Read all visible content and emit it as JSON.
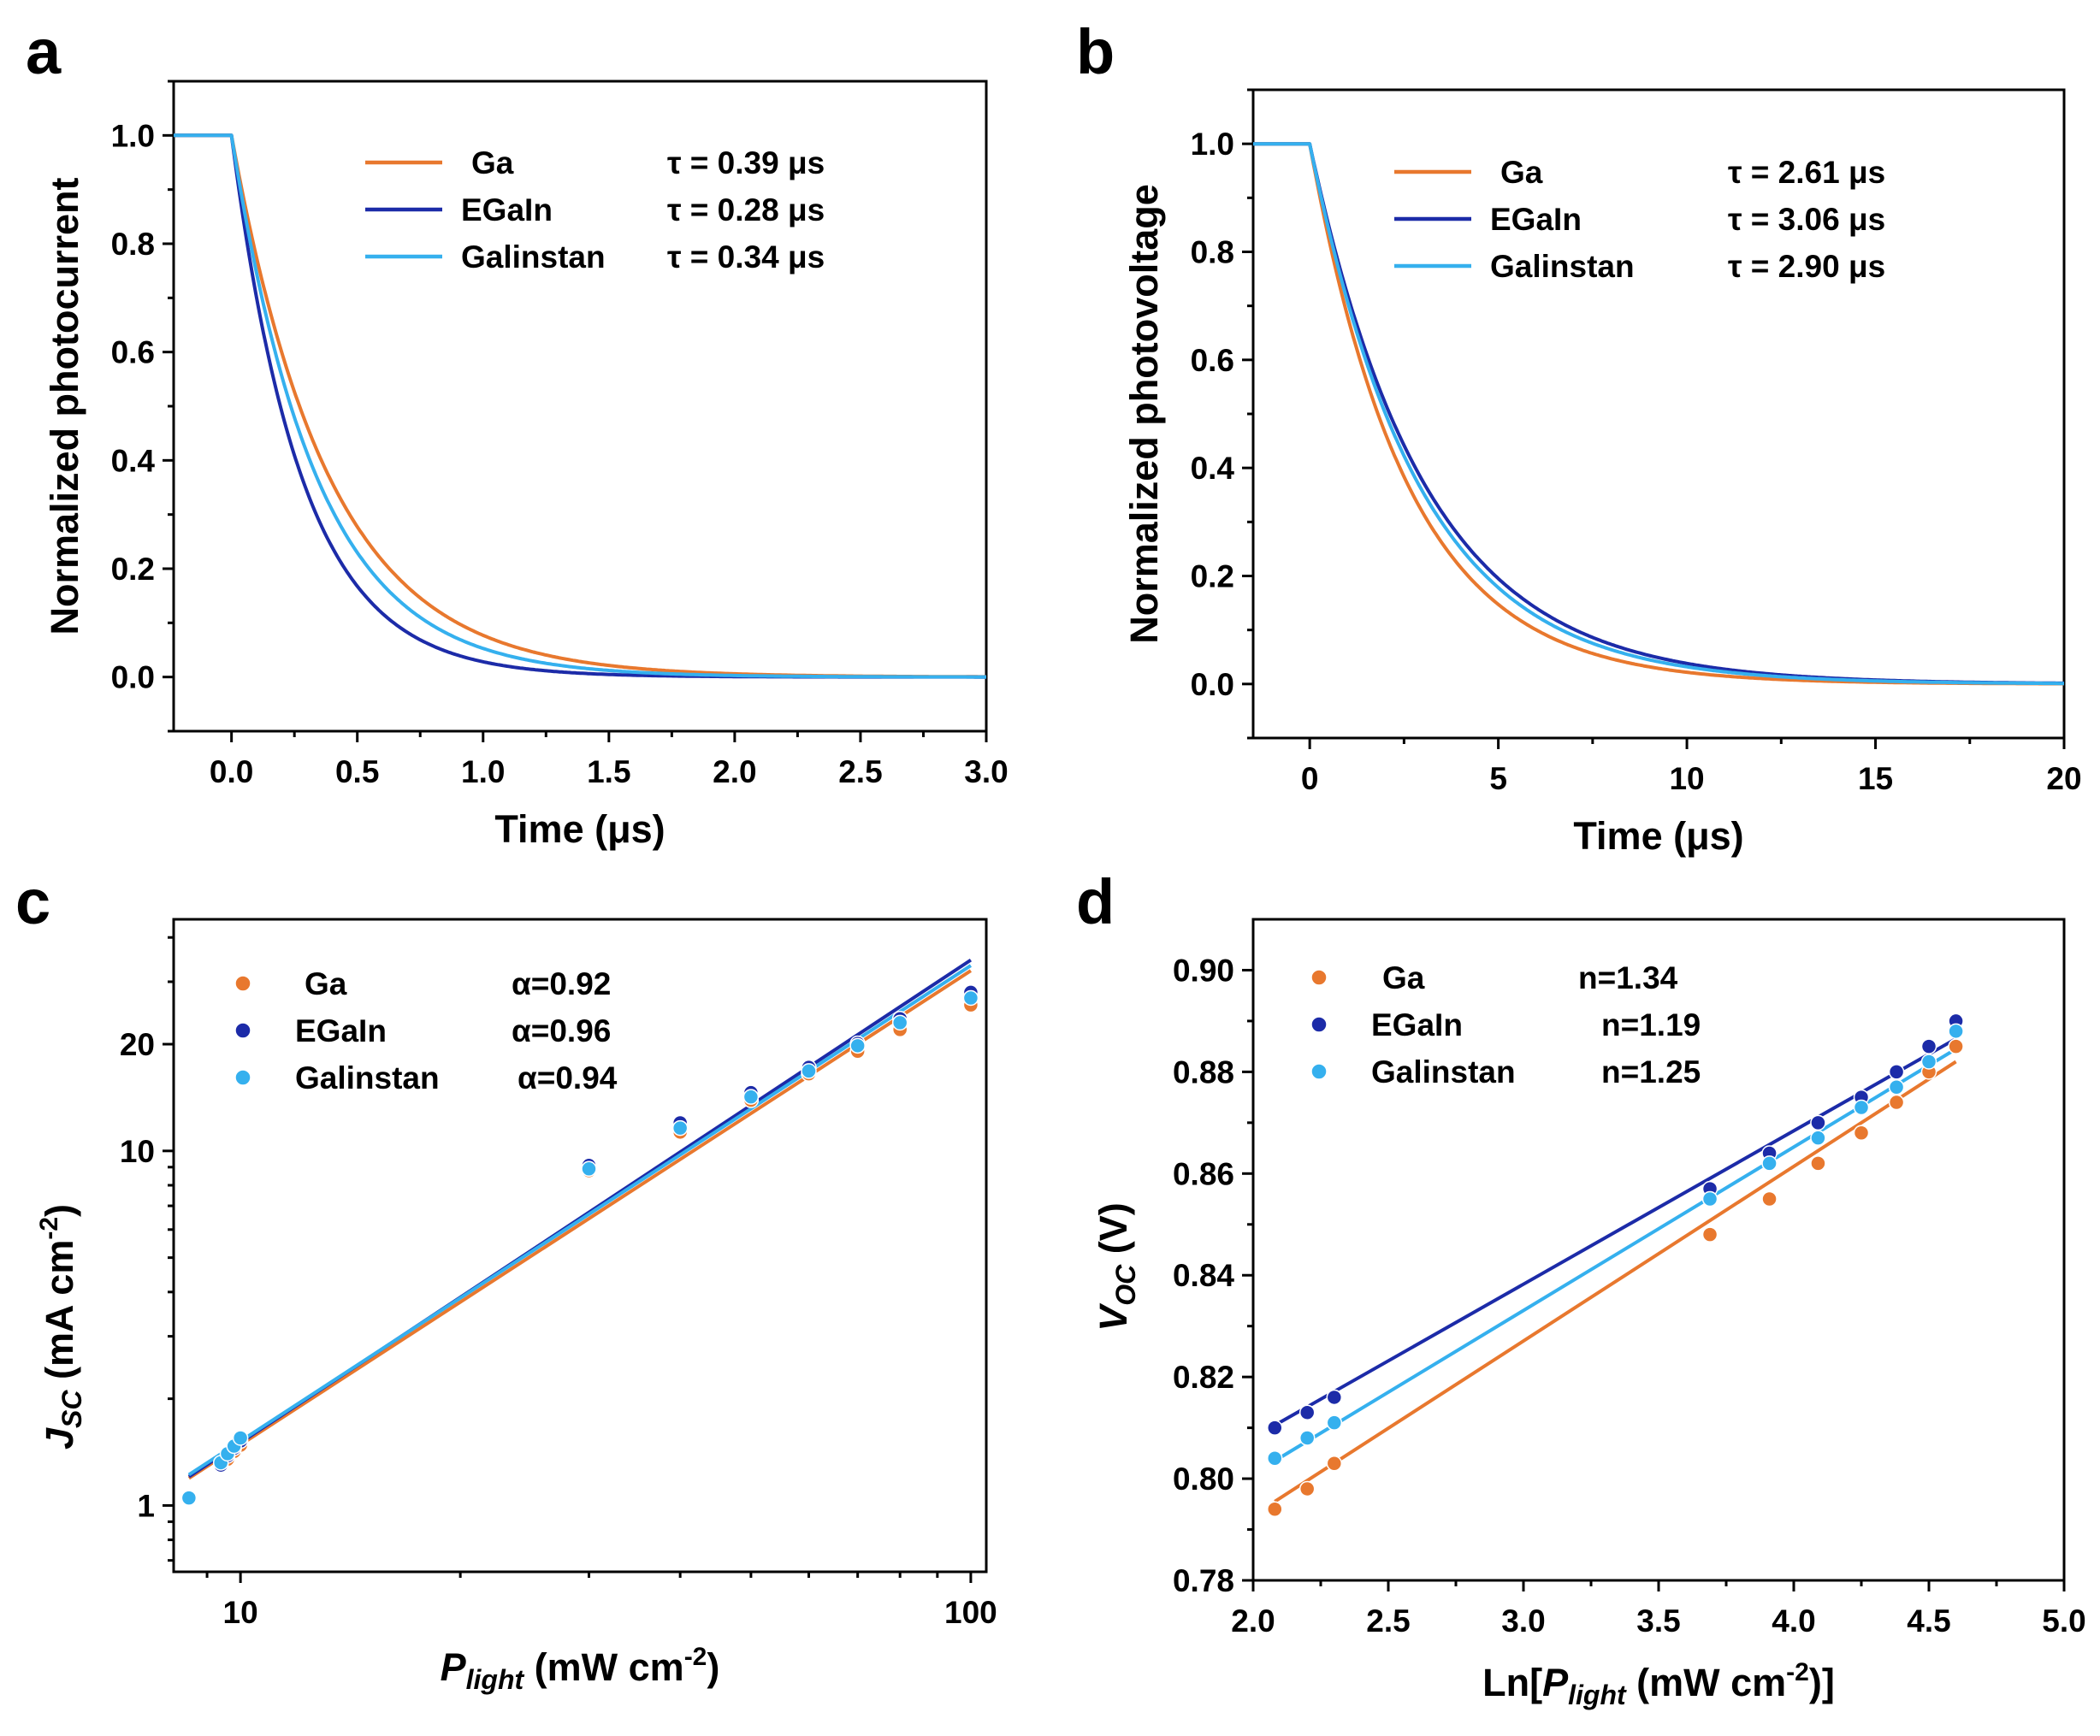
{
  "colors": {
    "Ga": "#E8782E",
    "EGaIn": "#1C2BA8",
    "Galinstan": "#35B0EE"
  },
  "chart_data": [
    {
      "panel": "a",
      "type": "line",
      "xlabel": "Time (μs)",
      "ylabel": "Normalized photocurrent",
      "xlim": [
        -0.23,
        3.0
      ],
      "ylim": [
        -0.1,
        1.1
      ],
      "xticks": [
        "0.0",
        "0.5",
        "1.0",
        "1.5",
        "2.0",
        "2.5",
        "3.0"
      ],
      "yticks": [
        "0.0",
        "0.2",
        "0.4",
        "0.6",
        "0.8",
        "1.0"
      ],
      "series": [
        {
          "name": "Ga",
          "tau_us": 0.39,
          "tau_label": "τ = 0.39 μs"
        },
        {
          "name": "EGaIn",
          "tau_us": 0.28,
          "tau_label": "τ = 0.28 μs"
        },
        {
          "name": "Galinstan",
          "tau_us": 0.34,
          "tau_label": "τ = 0.34 μs"
        }
      ]
    },
    {
      "panel": "b",
      "type": "line",
      "xlabel": "Time (μs)",
      "ylabel": "Normalized photovoltage",
      "xlim": [
        -1.5,
        20
      ],
      "ylim": [
        -0.1,
        1.1
      ],
      "xticks": [
        "0",
        "5",
        "10",
        "15",
        "20"
      ],
      "yticks": [
        "0.0",
        "0.2",
        "0.4",
        "0.6",
        "0.8",
        "1.0"
      ],
      "series": [
        {
          "name": "Ga",
          "tau_us": 2.61,
          "tau_label": "τ = 2.61 μs"
        },
        {
          "name": "EGaIn",
          "tau_us": 3.06,
          "tau_label": "τ = 3.06 μs"
        },
        {
          "name": "Galinstan",
          "tau_us": 2.9,
          "tau_label": "τ = 2.90 μs"
        }
      ]
    },
    {
      "panel": "c",
      "type": "scatter",
      "scale": "log-log",
      "xlabel_main": "P",
      "xlabel_sub": "light",
      "xlabel_unit": " (mW cm",
      "xlabel_sup": "-2",
      "xlabel_end": ")",
      "ylabel_main": "J",
      "ylabel_sub": "SC",
      "ylabel_unit": " (mA cm",
      "ylabel_sup": "-2",
      "ylabel_end": ")",
      "xlim": [
        8.1,
        105
      ],
      "ylim": [
        0.65,
        45
      ],
      "xticks": [
        "10",
        "100"
      ],
      "yticks": [
        "1",
        "10",
        "20"
      ],
      "x": [
        8.5,
        9.4,
        9.6,
        9.8,
        10.0,
        30,
        40,
        50,
        60,
        70,
        80,
        100
      ],
      "series": [
        {
          "name": "Ga",
          "alpha_label": "α=0.92",
          "values": [
            1.05,
            1.3,
            1.35,
            1.42,
            1.48,
            8.8,
            11.3,
            13.9,
            16.5,
            19.1,
            22.0,
            25.8
          ]
        },
        {
          "name": "EGaIn",
          "alpha_label": "α=0.96",
          "values": [
            1.05,
            1.3,
            1.38,
            1.45,
            1.52,
            9.1,
            12.0,
            14.6,
            17.2,
            20.1,
            23.6,
            28.0
          ]
        },
        {
          "name": "Galinstan",
          "alpha_label": "α=0.94",
          "values": [
            1.05,
            1.32,
            1.4,
            1.47,
            1.55,
            8.9,
            11.6,
            14.2,
            16.8,
            19.8,
            23.0,
            27.0
          ]
        }
      ]
    },
    {
      "panel": "d",
      "type": "scatter",
      "xlabel_pre": "Ln[",
      "xlabel_main": "P",
      "xlabel_sub": "light",
      "xlabel_unit": " (mW cm",
      "xlabel_sup": "-2",
      "xlabel_end": ")]",
      "ylabel_main": "V",
      "ylabel_sub": "OC",
      "ylabel_unit": " (V)",
      "xlim": [
        2.0,
        5.0
      ],
      "ylim": [
        0.78,
        0.91
      ],
      "xticks": [
        "2.0",
        "2.5",
        "3.0",
        "3.5",
        "4.0",
        "4.5",
        "5.0"
      ],
      "yticks": [
        "0.78",
        "0.80",
        "0.82",
        "0.84",
        "0.86",
        "0.88",
        "0.90"
      ],
      "x": [
        2.08,
        2.2,
        2.3,
        3.69,
        3.91,
        4.09,
        4.25,
        4.38,
        4.5,
        4.6
      ],
      "series": [
        {
          "name": "Ga",
          "n_label": "n=1.34",
          "values": [
            0.794,
            0.798,
            0.803,
            0.848,
            0.855,
            0.862,
            0.868,
            0.874,
            0.88,
            0.885
          ],
          "fit": [
            0.7955,
            0.882
          ]
        },
        {
          "name": "EGaIn",
          "n_label": "n=1.19",
          "values": [
            0.81,
            0.813,
            0.816,
            0.857,
            0.864,
            0.87,
            0.875,
            0.88,
            0.885,
            0.89
          ],
          "fit": [
            0.8105,
            0.8865
          ]
        },
        {
          "name": "Galinstan",
          "n_label": "n=1.25",
          "values": [
            0.804,
            0.808,
            0.811,
            0.855,
            0.862,
            0.867,
            0.873,
            0.877,
            0.882,
            0.888
          ],
          "fit": [
            0.8035,
            0.8845
          ]
        }
      ]
    }
  ]
}
